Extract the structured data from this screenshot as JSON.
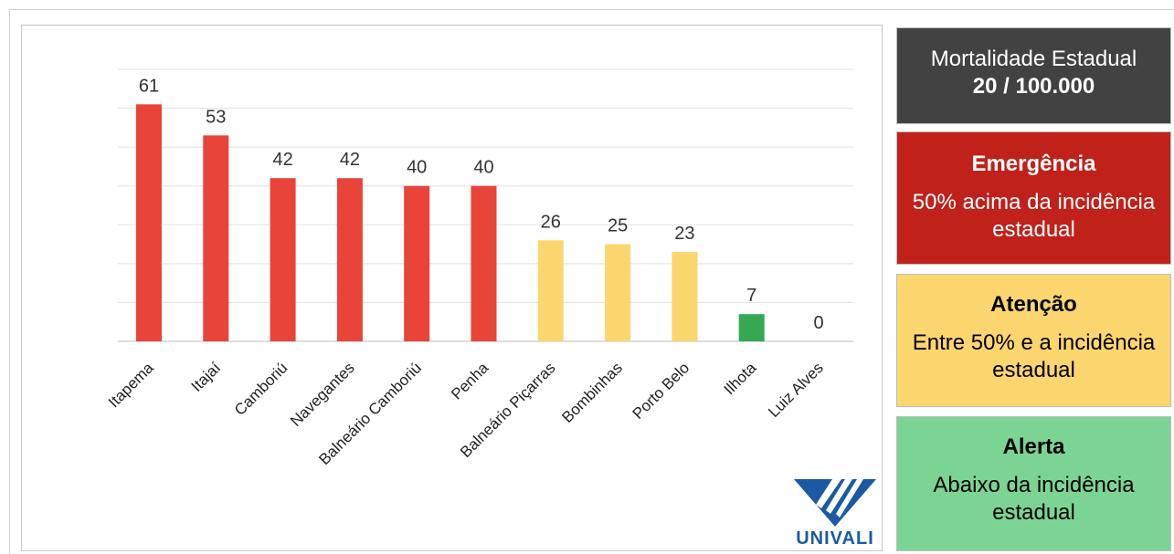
{
  "chart_data": {
    "type": "bar",
    "categories": [
      "Itapema",
      "Itajaí",
      "Camboriú",
      "Navegantes",
      "Balneário Camboriú",
      "Penha",
      "Balneário Piçarras",
      "Bombinhas",
      "Porto Belo",
      "Ilhota",
      "Luiz Alves"
    ],
    "values": [
      61,
      53,
      42,
      42,
      40,
      40,
      26,
      25,
      23,
      7,
      0
    ],
    "bar_colors": [
      "#e8443a",
      "#e8443a",
      "#e8443a",
      "#e8443a",
      "#e8443a",
      "#e8443a",
      "#fbd66f",
      "#fbd66f",
      "#fbd66f",
      "#34a853",
      "#34a853"
    ],
    "ylim": [
      0,
      70
    ],
    "grid": true,
    "title": "",
    "xlabel": "",
    "ylabel": ""
  },
  "logo": {
    "text": "UNIVALI"
  },
  "legend": {
    "state": {
      "line1": "Mortalidade Estadual",
      "line2": "20 / 100.000",
      "color": "#424242"
    },
    "emergency": {
      "title": "Emergência",
      "desc": "50% acima da incidência estadual",
      "color": "#c0211a"
    },
    "attention": {
      "title": "Atenção",
      "desc": "Entre 50% e a incidência estadual",
      "color": "#fbd66f"
    },
    "alert": {
      "title": "Alerta",
      "desc": "Abaixo da incidência estadual",
      "color": "#7cd494"
    }
  }
}
